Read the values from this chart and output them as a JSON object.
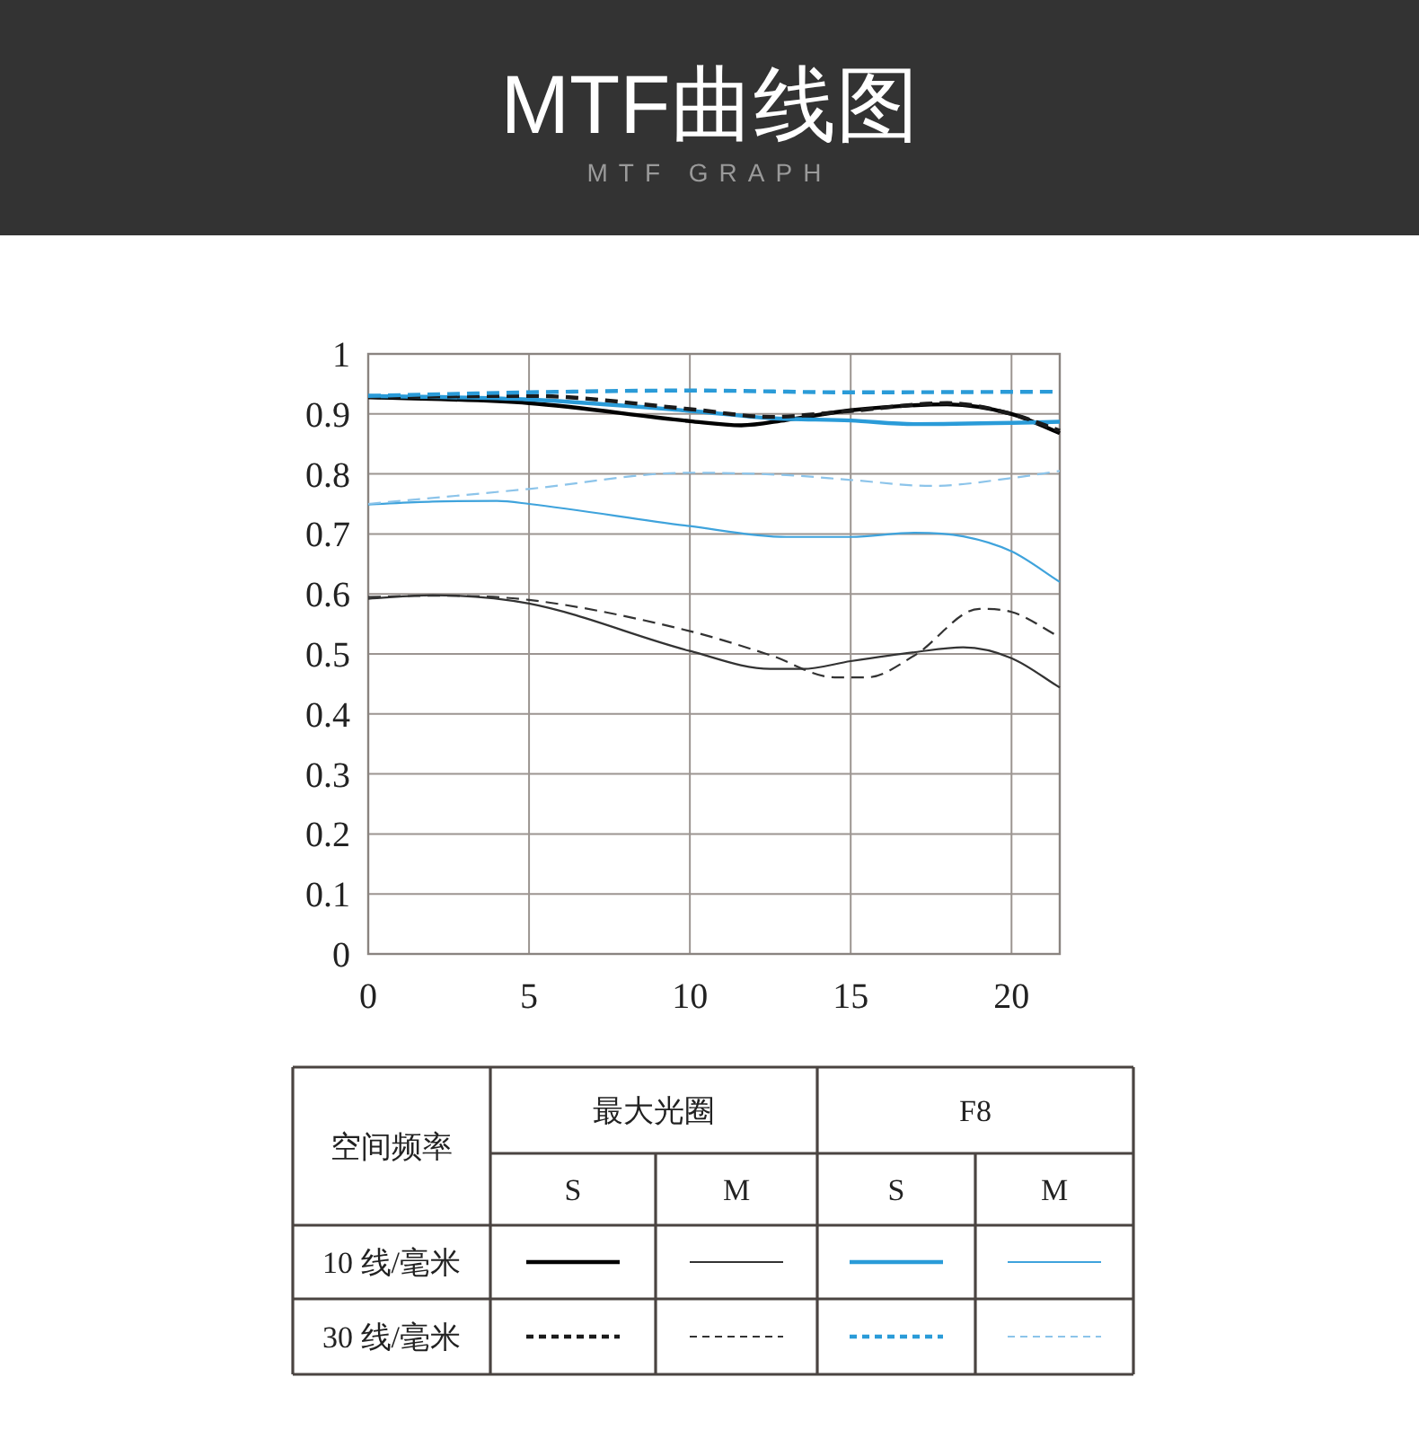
{
  "chart_data": {
    "type": "line",
    "title": "MTF曲线图",
    "subtitle": "MTF GRAPH",
    "xlim": [
      0,
      21.5
    ],
    "xticks": [
      0,
      5,
      10,
      15,
      20
    ],
    "ylim": [
      0,
      1
    ],
    "yticks": [
      0,
      0.1,
      0.2,
      0.3,
      0.4,
      0.5,
      0.6,
      0.7,
      0.8,
      0.9,
      1
    ],
    "grid": true,
    "annotations": [
      "空间频率",
      "最大光圈",
      "F8",
      "S",
      "M",
      "S",
      "M",
      "10 线/毫米",
      "30 线/毫米"
    ],
    "series": [
      {
        "color": "#000000",
        "line_style": "solid",
        "x": [
          0,
          5,
          10,
          11.6,
          13,
          15,
          18,
          20,
          21.5
        ],
        "values": [
          0.928,
          0.918,
          0.888,
          0.881,
          0.89,
          0.906,
          0.916,
          0.9,
          0.868
        ]
      },
      {
        "color": "#333333",
        "line_style": "solid",
        "x": [
          0,
          2,
          5,
          10,
          12.5,
          13.5,
          15,
          17,
          18.5,
          20,
          21.5
        ],
        "values": [
          0.592,
          0.598,
          0.584,
          0.505,
          0.475,
          0.475,
          0.488,
          0.503,
          0.511,
          0.493,
          0.444
        ]
      },
      {
        "color": "#2a9bd8",
        "line_style": "solid",
        "x": [
          0,
          5,
          10,
          12.5,
          15,
          17,
          20,
          21.5
        ],
        "values": [
          0.93,
          0.924,
          0.905,
          0.893,
          0.889,
          0.883,
          0.885,
          0.887
        ]
      },
      {
        "color": "#3fa3dc",
        "line_style": "solid",
        "x": [
          0,
          2,
          4,
          5,
          10,
          13,
          15,
          17,
          18.5,
          20,
          21.5
        ],
        "values": [
          0.749,
          0.754,
          0.755,
          0.75,
          0.713,
          0.695,
          0.695,
          0.702,
          0.696,
          0.671,
          0.62
        ]
      },
      {
        "color": "#1a1a1a",
        "line_style": "dashed",
        "x": [
          0,
          5,
          10,
          12.5,
          15,
          18,
          20,
          21.5
        ],
        "values": [
          0.928,
          0.93,
          0.908,
          0.895,
          0.905,
          0.918,
          0.9,
          0.872
        ]
      },
      {
        "color": "#333333",
        "line_style": "dashed",
        "x": [
          0,
          2,
          5,
          10,
          12.5,
          14.5,
          15.5,
          17,
          19,
          20,
          21.5
        ],
        "values": [
          0.595,
          0.597,
          0.59,
          0.538,
          0.498,
          0.461,
          0.461,
          0.498,
          0.575,
          0.57,
          0.528
        ]
      },
      {
        "color": "#2a9bd8",
        "line_style": "dashed",
        "x": [
          0,
          5,
          10,
          15,
          21.5
        ],
        "values": [
          0.93,
          0.936,
          0.939,
          0.936,
          0.937
        ]
      },
      {
        "color": "#8cc4ea",
        "line_style": "dashed",
        "x": [
          0,
          5,
          10,
          13,
          15,
          17.5,
          20,
          21.5
        ],
        "values": [
          0.75,
          0.775,
          0.802,
          0.798,
          0.79,
          0.78,
          0.793,
          0.805
        ]
      }
    ]
  }
}
